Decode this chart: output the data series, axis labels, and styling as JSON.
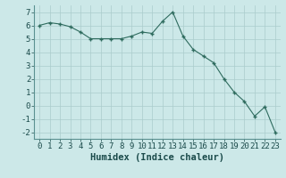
{
  "x": [
    0,
    1,
    2,
    3,
    4,
    5,
    6,
    7,
    8,
    9,
    10,
    11,
    12,
    13,
    14,
    15,
    16,
    17,
    18,
    19,
    20,
    21,
    22,
    23
  ],
  "y": [
    6.0,
    6.2,
    6.1,
    5.9,
    5.5,
    5.0,
    5.0,
    5.0,
    5.0,
    5.2,
    5.5,
    5.4,
    6.3,
    7.0,
    5.2,
    4.2,
    3.7,
    3.2,
    2.0,
    1.0,
    0.3,
    -0.8,
    -0.1,
    -2.0
  ],
  "line_color": "#2e6b5e",
  "marker": "+",
  "marker_size": 3,
  "marker_lw": 1.0,
  "line_width": 0.8,
  "bg_color": "#cce8e8",
  "grid_color": "#aacccc",
  "xlabel": "Humidex (Indice chaleur)",
  "ylabel": "",
  "xlim": [
    -0.5,
    23.5
  ],
  "ylim": [
    -2.5,
    7.5
  ],
  "xticks": [
    0,
    1,
    2,
    3,
    4,
    5,
    6,
    7,
    8,
    9,
    10,
    11,
    12,
    13,
    14,
    15,
    16,
    17,
    18,
    19,
    20,
    21,
    22,
    23
  ],
  "yticks": [
    -2,
    -1,
    0,
    1,
    2,
    3,
    4,
    5,
    6,
    7
  ],
  "tick_fontsize": 6.5,
  "xlabel_fontsize": 7.5
}
